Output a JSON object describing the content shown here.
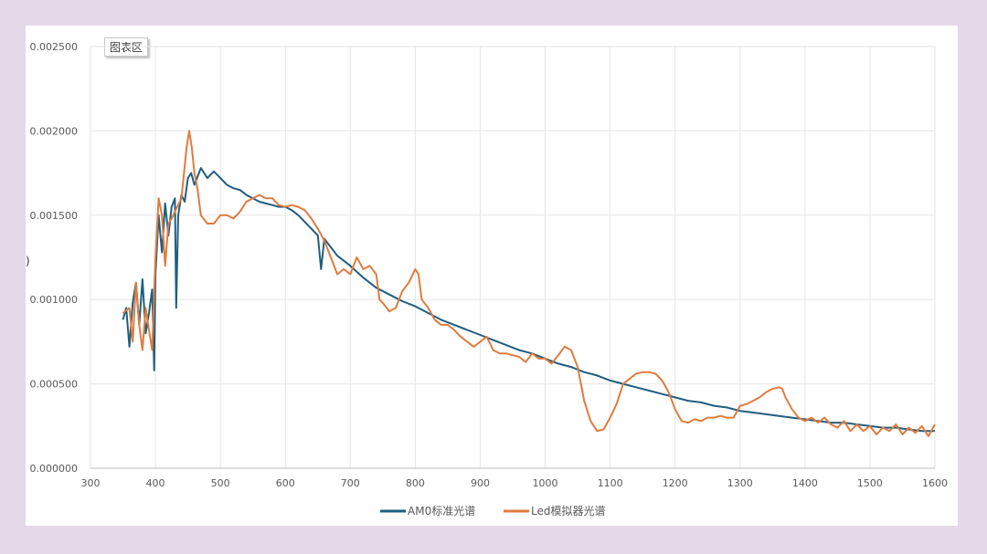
{
  "chart_area_label": "图表区",
  "y_axis_fragment": ")",
  "colors": {
    "am0": "#1f5e7f",
    "led": "#e07b3e",
    "grid": "#e6e6e6"
  },
  "chart_data": {
    "type": "line",
    "title": "",
    "xlabel": "",
    "ylabel": "",
    "xlim": [
      300,
      1600
    ],
    "ylim": [
      0,
      0.0025
    ],
    "x_ticks": [
      300,
      400,
      500,
      600,
      700,
      800,
      900,
      1000,
      1100,
      1200,
      1300,
      1400,
      1500,
      1600
    ],
    "x_tick_labels": [
      "300",
      "400",
      "500",
      "600",
      "700",
      "800",
      "900",
      "1000",
      "1100",
      "1200",
      "1300",
      "1400",
      "1500",
      "1600"
    ],
    "y_ticks": [
      0,
      0.0005,
      0.001,
      0.0015,
      0.002,
      0.0025
    ],
    "y_tick_labels": [
      "0.000000",
      "0.000500",
      "0.001000",
      "0.001500",
      "0.002000",
      "0.002500"
    ],
    "grid": true,
    "legend_position": "bottom",
    "series": [
      {
        "name": "AM0标准光谱",
        "color": "#1f5e7f",
        "points": [
          [
            350,
            0.00088
          ],
          [
            355,
            0.00095
          ],
          [
            360,
            0.00072
          ],
          [
            365,
            0.00098
          ],
          [
            370,
            0.0011
          ],
          [
            375,
            0.00085
          ],
          [
            380,
            0.00112
          ],
          [
            385,
            0.0008
          ],
          [
            390,
            0.00092
          ],
          [
            395,
            0.00106
          ],
          [
            398,
            0.00058
          ],
          [
            400,
            0.00115
          ],
          [
            405,
            0.0015
          ],
          [
            410,
            0.00128
          ],
          [
            415,
            0.00157
          ],
          [
            420,
            0.00138
          ],
          [
            425,
            0.00155
          ],
          [
            430,
            0.0016
          ],
          [
            432,
            0.00095
          ],
          [
            435,
            0.0015
          ],
          [
            440,
            0.00162
          ],
          [
            445,
            0.00158
          ],
          [
            450,
            0.00172
          ],
          [
            455,
            0.00175
          ],
          [
            460,
            0.00168
          ],
          [
            470,
            0.00178
          ],
          [
            480,
            0.00172
          ],
          [
            490,
            0.00176
          ],
          [
            500,
            0.00172
          ],
          [
            510,
            0.00168
          ],
          [
            520,
            0.00166
          ],
          [
            530,
            0.00165
          ],
          [
            540,
            0.00162
          ],
          [
            550,
            0.0016
          ],
          [
            560,
            0.00158
          ],
          [
            570,
            0.00157
          ],
          [
            580,
            0.00156
          ],
          [
            590,
            0.00155
          ],
          [
            600,
            0.00155
          ],
          [
            610,
            0.00153
          ],
          [
            620,
            0.0015
          ],
          [
            630,
            0.00146
          ],
          [
            640,
            0.00142
          ],
          [
            650,
            0.00138
          ],
          [
            655,
            0.00118
          ],
          [
            660,
            0.00136
          ],
          [
            670,
            0.00131
          ],
          [
            680,
            0.00126
          ],
          [
            690,
            0.00123
          ],
          [
            700,
            0.0012
          ],
          [
            720,
            0.00113
          ],
          [
            740,
            0.00107
          ],
          [
            760,
            0.00103
          ],
          [
            780,
            0.00099
          ],
          [
            800,
            0.00096
          ],
          [
            820,
            0.00092
          ],
          [
            840,
            0.00088
          ],
          [
            860,
            0.00085
          ],
          [
            880,
            0.00082
          ],
          [
            900,
            0.00079
          ],
          [
            920,
            0.00076
          ],
          [
            940,
            0.00073
          ],
          [
            960,
            0.0007
          ],
          [
            980,
            0.00068
          ],
          [
            1000,
            0.00065
          ],
          [
            1020,
            0.00062
          ],
          [
            1040,
            0.0006
          ],
          [
            1060,
            0.00057
          ],
          [
            1080,
            0.00055
          ],
          [
            1100,
            0.00052
          ],
          [
            1120,
            0.0005
          ],
          [
            1140,
            0.00048
          ],
          [
            1160,
            0.00046
          ],
          [
            1180,
            0.00044
          ],
          [
            1200,
            0.00042
          ],
          [
            1220,
            0.0004
          ],
          [
            1240,
            0.00039
          ],
          [
            1260,
            0.00037
          ],
          [
            1280,
            0.00036
          ],
          [
            1300,
            0.00034
          ],
          [
            1320,
            0.00033
          ],
          [
            1340,
            0.00032
          ],
          [
            1360,
            0.00031
          ],
          [
            1380,
            0.0003
          ],
          [
            1400,
            0.00029
          ],
          [
            1420,
            0.00028
          ],
          [
            1440,
            0.00027
          ],
          [
            1460,
            0.00027
          ],
          [
            1480,
            0.00026
          ],
          [
            1500,
            0.00025
          ],
          [
            1520,
            0.00024
          ],
          [
            1540,
            0.00024
          ],
          [
            1560,
            0.00023
          ],
          [
            1580,
            0.00022
          ],
          [
            1600,
            0.00022
          ]
        ]
      },
      {
        "name": "Led模拟器光谱",
        "color": "#e07b3e",
        "points": [
          [
            350,
            0.00092
          ],
          [
            360,
            0.00095
          ],
          [
            365,
            0.00075
          ],
          [
            370,
            0.0011
          ],
          [
            375,
            0.00085
          ],
          [
            380,
            0.0007
          ],
          [
            385,
            0.00095
          ],
          [
            390,
            0.00082
          ],
          [
            395,
            0.0007
          ],
          [
            400,
            0.00125
          ],
          [
            405,
            0.0016
          ],
          [
            410,
            0.0015
          ],
          [
            415,
            0.0012
          ],
          [
            420,
            0.00145
          ],
          [
            425,
            0.00148
          ],
          [
            430,
            0.00152
          ],
          [
            440,
            0.0016
          ],
          [
            448,
            0.0019
          ],
          [
            452,
            0.002
          ],
          [
            456,
            0.0019
          ],
          [
            460,
            0.00175
          ],
          [
            465,
            0.00165
          ],
          [
            470,
            0.0015
          ],
          [
            480,
            0.00145
          ],
          [
            490,
            0.00145
          ],
          [
            500,
            0.0015
          ],
          [
            510,
            0.0015
          ],
          [
            520,
            0.00148
          ],
          [
            530,
            0.00152
          ],
          [
            540,
            0.00158
          ],
          [
            550,
            0.0016
          ],
          [
            560,
            0.00162
          ],
          [
            570,
            0.0016
          ],
          [
            580,
            0.0016
          ],
          [
            590,
            0.00156
          ],
          [
            600,
            0.00155
          ],
          [
            610,
            0.00156
          ],
          [
            620,
            0.00155
          ],
          [
            630,
            0.00153
          ],
          [
            640,
            0.00148
          ],
          [
            650,
            0.00142
          ],
          [
            660,
            0.00135
          ],
          [
            670,
            0.00125
          ],
          [
            680,
            0.00115
          ],
          [
            690,
            0.00118
          ],
          [
            700,
            0.00115
          ],
          [
            710,
            0.00125
          ],
          [
            720,
            0.00118
          ],
          [
            730,
            0.0012
          ],
          [
            740,
            0.00115
          ],
          [
            745,
            0.001
          ],
          [
            750,
            0.00098
          ],
          [
            760,
            0.00093
          ],
          [
            770,
            0.00095
          ],
          [
            780,
            0.00105
          ],
          [
            790,
            0.0011
          ],
          [
            800,
            0.00118
          ],
          [
            805,
            0.00115
          ],
          [
            810,
            0.001
          ],
          [
            820,
            0.00095
          ],
          [
            830,
            0.00088
          ],
          [
            840,
            0.00085
          ],
          [
            850,
            0.00085
          ],
          [
            860,
            0.00082
          ],
          [
            870,
            0.00078
          ],
          [
            880,
            0.00075
          ],
          [
            890,
            0.00072
          ],
          [
            900,
            0.00075
          ],
          [
            910,
            0.00078
          ],
          [
            920,
            0.0007
          ],
          [
            930,
            0.00068
          ],
          [
            940,
            0.00068
          ],
          [
            950,
            0.00067
          ],
          [
            960,
            0.00066
          ],
          [
            970,
            0.00063
          ],
          [
            980,
            0.00068
          ],
          [
            990,
            0.00065
          ],
          [
            1000,
            0.00065
          ],
          [
            1010,
            0.00062
          ],
          [
            1020,
            0.00067
          ],
          [
            1030,
            0.00072
          ],
          [
            1040,
            0.0007
          ],
          [
            1050,
            0.0006
          ],
          [
            1060,
            0.0004
          ],
          [
            1070,
            0.00028
          ],
          [
            1080,
            0.00022
          ],
          [
            1090,
            0.00023
          ],
          [
            1100,
            0.0003
          ],
          [
            1110,
            0.00038
          ],
          [
            1120,
            0.0005
          ],
          [
            1130,
            0.00053
          ],
          [
            1140,
            0.00056
          ],
          [
            1150,
            0.00057
          ],
          [
            1160,
            0.00057
          ],
          [
            1170,
            0.00056
          ],
          [
            1180,
            0.00052
          ],
          [
            1190,
            0.00045
          ],
          [
            1200,
            0.00035
          ],
          [
            1210,
            0.00028
          ],
          [
            1220,
            0.00027
          ],
          [
            1230,
            0.00029
          ],
          [
            1240,
            0.00028
          ],
          [
            1250,
            0.0003
          ],
          [
            1260,
            0.0003
          ],
          [
            1270,
            0.00031
          ],
          [
            1280,
            0.0003
          ],
          [
            1290,
            0.0003
          ],
          [
            1300,
            0.00037
          ],
          [
            1310,
            0.00038
          ],
          [
            1320,
            0.0004
          ],
          [
            1330,
            0.00042
          ],
          [
            1340,
            0.00045
          ],
          [
            1350,
            0.00047
          ],
          [
            1360,
            0.00048
          ],
          [
            1365,
            0.00047
          ],
          [
            1370,
            0.00042
          ],
          [
            1380,
            0.00035
          ],
          [
            1390,
            0.0003
          ],
          [
            1400,
            0.00028
          ],
          [
            1410,
            0.0003
          ],
          [
            1420,
            0.00027
          ],
          [
            1430,
            0.0003
          ],
          [
            1440,
            0.00026
          ],
          [
            1450,
            0.00024
          ],
          [
            1460,
            0.00028
          ],
          [
            1470,
            0.00022
          ],
          [
            1480,
            0.00026
          ],
          [
            1490,
            0.00022
          ],
          [
            1500,
            0.00025
          ],
          [
            1510,
            0.0002
          ],
          [
            1520,
            0.00024
          ],
          [
            1530,
            0.00022
          ],
          [
            1540,
            0.00026
          ],
          [
            1550,
            0.0002
          ],
          [
            1560,
            0.00024
          ],
          [
            1570,
            0.00021
          ],
          [
            1580,
            0.00025
          ],
          [
            1590,
            0.00019
          ],
          [
            1600,
            0.00026
          ]
        ]
      }
    ]
  }
}
